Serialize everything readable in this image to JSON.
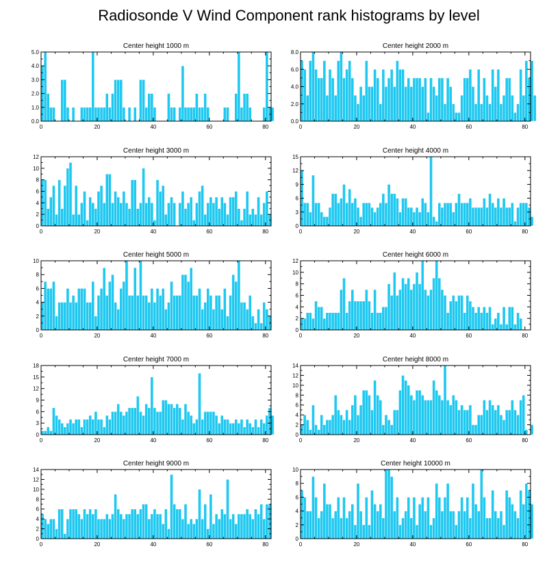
{
  "title": "Radiosonde V Wind Component rank histograms by level",
  "colors": {
    "bar": "#1ec8f0",
    "frame": "#000000",
    "background": "#ffffff"
  },
  "chart_data": [
    {
      "type": "bar",
      "title": "Center height 1000 m",
      "xlim": [
        0,
        82
      ],
      "ylim": [
        0,
        5
      ],
      "xticks": [
        0,
        20,
        40,
        60,
        80
      ],
      "yticks": [
        "0.0",
        "1.0",
        "2.0",
        "3.0",
        "4.0",
        "5.0"
      ],
      "values": [
        4,
        5,
        2,
        1,
        1,
        0,
        0,
        3,
        3,
        1,
        0,
        1,
        0,
        0,
        1,
        1,
        1,
        1,
        5,
        1,
        1,
        1,
        1,
        2,
        1,
        2,
        3,
        3,
        3,
        1,
        0,
        1,
        0,
        1,
        0,
        3,
        3,
        1,
        2,
        2,
        1,
        0,
        0,
        0,
        0,
        2,
        1,
        1,
        0,
        1,
        4,
        1,
        1,
        1,
        1,
        2,
        1,
        1,
        2,
        1,
        0,
        0,
        0,
        0,
        0,
        1,
        1,
        0,
        0,
        2,
        5,
        1,
        2,
        2,
        1,
        0,
        0,
        0,
        0,
        1,
        5,
        1,
        1
      ]
    },
    {
      "type": "bar",
      "title": "Center height 2000 m",
      "xlim": [
        0,
        82
      ],
      "ylim": [
        0,
        8
      ],
      "xticks": [
        0,
        20,
        40,
        60,
        80
      ],
      "yticks": [
        "0.0",
        "2.0",
        "4.0",
        "6.0",
        "8.0"
      ],
      "values": [
        7,
        6,
        3,
        7,
        8,
        6,
        5,
        5,
        7,
        3,
        6,
        5,
        3,
        7,
        8,
        5,
        6,
        7,
        5,
        3,
        2,
        4,
        3,
        7,
        4,
        4,
        6,
        5,
        2,
        6,
        4,
        5,
        6,
        4,
        7,
        6,
        6,
        4,
        5,
        4,
        5,
        5,
        5,
        4,
        5,
        1,
        5,
        4,
        3,
        5,
        5,
        2,
        5,
        4,
        2,
        1,
        1,
        3,
        5,
        5,
        6,
        4,
        2,
        6,
        2,
        5,
        3,
        2,
        6,
        4,
        6,
        2,
        3,
        5,
        5,
        3,
        1,
        2,
        6,
        3,
        7,
        5,
        7,
        3
      ]
    },
    {
      "type": "bar",
      "title": "Center height 3000 m",
      "xlim": [
        0,
        82
      ],
      "ylim": [
        0,
        12
      ],
      "xticks": [
        0,
        20,
        40,
        60,
        80
      ],
      "yticks": [
        "0",
        "2",
        "4",
        "6",
        "8",
        "10",
        "12"
      ],
      "values": [
        8,
        8,
        3,
        5,
        7,
        2,
        8,
        3,
        7,
        10,
        11,
        2,
        7,
        2,
        4,
        6,
        1,
        5,
        4,
        3,
        6,
        7,
        4,
        9,
        9,
        4,
        6,
        5,
        4,
        6,
        4,
        3,
        8,
        8,
        3,
        4,
        10,
        4,
        5,
        4,
        1,
        8,
        6,
        7,
        2,
        4,
        5,
        4,
        0,
        4,
        6,
        3,
        4,
        5,
        1,
        4,
        6,
        7,
        2,
        4,
        5,
        4,
        5,
        3,
        5,
        4,
        2,
        5,
        5,
        6,
        3,
        1,
        3,
        6,
        2,
        3,
        2,
        5,
        2,
        4,
        6,
        2
      ]
    },
    {
      "type": "bar",
      "title": "Center height 4000 m",
      "xlim": [
        0,
        82
      ],
      "ylim": [
        0,
        15
      ],
      "xticks": [
        0,
        20,
        40,
        60,
        80
      ],
      "yticks": [
        "0",
        "3",
        "6",
        "9",
        "12",
        "15"
      ],
      "values": [
        12,
        5,
        5,
        3,
        11,
        5,
        5,
        3,
        2,
        2,
        4,
        7,
        7,
        5,
        6,
        9,
        5,
        8,
        5,
        6,
        4,
        2,
        5,
        5,
        5,
        4,
        3,
        4,
        5,
        7,
        5,
        9,
        7,
        7,
        6,
        3,
        6,
        6,
        4,
        4,
        3,
        4,
        3,
        6,
        5,
        3,
        15,
        2,
        1,
        5,
        4,
        5,
        5,
        5,
        3,
        5,
        7,
        5,
        5,
        5,
        6,
        4,
        4,
        4,
        4,
        6,
        4,
        7,
        5,
        4,
        6,
        4,
        6,
        4,
        4,
        5,
        1,
        4,
        5,
        5,
        5,
        4,
        2
      ]
    },
    {
      "type": "bar",
      "title": "Center height 5000 m",
      "xlim": [
        0,
        82
      ],
      "ylim": [
        0,
        10
      ],
      "xticks": [
        0,
        20,
        40,
        60,
        80
      ],
      "yticks": [
        "0",
        "2",
        "4",
        "6",
        "8",
        "10"
      ],
      "values": [
        4,
        7,
        6,
        6,
        7,
        2,
        4,
        4,
        4,
        6,
        4,
        5,
        4,
        6,
        6,
        6,
        4,
        4,
        7,
        2,
        5,
        6,
        9,
        5,
        7,
        8,
        4,
        3,
        6,
        7,
        10,
        5,
        5,
        9,
        5,
        10,
        5,
        5,
        4,
        6,
        4,
        6,
        5,
        6,
        3,
        4,
        7,
        5,
        5,
        5,
        8,
        8,
        7,
        9,
        5,
        5,
        6,
        3,
        4,
        6,
        5,
        3,
        5,
        5,
        3,
        6,
        2,
        5,
        8,
        7,
        10,
        4,
        4,
        3,
        5,
        2,
        1,
        3,
        1,
        4,
        3,
        2
      ]
    },
    {
      "type": "bar",
      "title": "Center height 6000 m",
      "xlim": [
        0,
        82
      ],
      "ylim": [
        0,
        12
      ],
      "xticks": [
        0,
        20,
        40,
        60,
        80
      ],
      "yticks": [
        "0",
        "2",
        "4",
        "6",
        "8",
        "10",
        "12"
      ],
      "values": [
        2,
        2,
        3,
        3,
        2,
        5,
        4,
        4,
        2,
        3,
        3,
        3,
        3,
        3,
        7,
        9,
        3,
        5,
        7,
        5,
        5,
        5,
        5,
        7,
        5,
        3,
        7,
        3,
        3,
        4,
        4,
        8,
        6,
        10,
        6,
        7,
        9,
        8,
        9,
        7,
        8,
        10,
        8,
        12,
        7,
        6,
        7,
        9,
        12,
        9,
        7,
        6,
        3,
        5,
        6,
        5,
        6,
        6,
        3,
        6,
        5,
        4,
        3,
        4,
        3,
        4,
        3,
        4,
        1,
        2,
        3,
        1,
        4,
        1,
        4,
        4,
        1,
        3,
        2
      ]
    },
    {
      "type": "bar",
      "title": "Center height 7000 m",
      "xlim": [
        0,
        82
      ],
      "ylim": [
        0,
        18
      ],
      "xticks": [
        0,
        20,
        40,
        60,
        80
      ],
      "yticks": [
        "0",
        "3",
        "6",
        "9",
        "12",
        "15",
        "18"
      ],
      "values": [
        1,
        1,
        2,
        1,
        7,
        5,
        4,
        3,
        2,
        3,
        4,
        3,
        4,
        4,
        2,
        4,
        4,
        5,
        4,
        6,
        4,
        4,
        2,
        5,
        4,
        6,
        6,
        8,
        6,
        5,
        6,
        7,
        7,
        7,
        10,
        6,
        5,
        8,
        7,
        15,
        7,
        6,
        6,
        9,
        9,
        8,
        8,
        7,
        8,
        7,
        4,
        8,
        6,
        5,
        3,
        4,
        16,
        4,
        6,
        6,
        6,
        6,
        5,
        3,
        5,
        4,
        4,
        3,
        3,
        4,
        3,
        4,
        2,
        4,
        3,
        2,
        4,
        2,
        4,
        3,
        5,
        7,
        5
      ]
    },
    {
      "type": "bar",
      "title": "Center height 8000 m",
      "xlim": [
        0,
        82
      ],
      "ylim": [
        0,
        14
      ],
      "xticks": [
        0,
        20,
        40,
        60,
        80
      ],
      "yticks": [
        "0",
        "2",
        "4",
        "6",
        "8",
        "10",
        "12",
        "14"
      ],
      "values": [
        2,
        4,
        3,
        1,
        6,
        2,
        1,
        4,
        2,
        3,
        3,
        4,
        8,
        5,
        4,
        3,
        5,
        3,
        6,
        8,
        4,
        6,
        9,
        9,
        8,
        5,
        11,
        8,
        7,
        2,
        4,
        3,
        2,
        5,
        5,
        9,
        12,
        11,
        10,
        8,
        7,
        9,
        9,
        8,
        7,
        7,
        7,
        11,
        9,
        8,
        7,
        14,
        7,
        6,
        8,
        7,
        5,
        6,
        5,
        5,
        6,
        2,
        2,
        4,
        4,
        7,
        5,
        7,
        6,
        5,
        6,
        4,
        3,
        5,
        5,
        7,
        5,
        4,
        7,
        8,
        1,
        0,
        2
      ]
    },
    {
      "type": "bar",
      "title": "Center height 9000 m",
      "xlim": [
        0,
        82
      ],
      "ylim": [
        0,
        14
      ],
      "xticks": [
        0,
        20,
        40,
        60,
        80
      ],
      "yticks": [
        "0",
        "2",
        "4",
        "6",
        "8",
        "10",
        "12",
        "14"
      ],
      "values": [
        5,
        4,
        3,
        4,
        4,
        2,
        6,
        6,
        1,
        4,
        6,
        6,
        6,
        5,
        4,
        6,
        5,
        6,
        5,
        6,
        4,
        4,
        4,
        5,
        4,
        5,
        9,
        6,
        5,
        4,
        5,
        5,
        6,
        6,
        5,
        6,
        7,
        7,
        4,
        5,
        6,
        5,
        5,
        3,
        6,
        2,
        13,
        7,
        6,
        6,
        4,
        7,
        3,
        4,
        3,
        4,
        10,
        4,
        7,
        2,
        9,
        3,
        5,
        4,
        6,
        5,
        12,
        4,
        5,
        3,
        5,
        5,
        5,
        6,
        5,
        4,
        6,
        5,
        7,
        4,
        7,
        7
      ]
    },
    {
      "type": "bar",
      "title": "Center height 10000 m",
      "xlim": [
        0,
        82
      ],
      "ylim": [
        0,
        10
      ],
      "xticks": [
        0,
        20,
        40,
        60,
        80
      ],
      "yticks": [
        "0",
        "2",
        "4",
        "6",
        "8",
        "10"
      ],
      "values": [
        7,
        6,
        4,
        4,
        9,
        6,
        3,
        4,
        8,
        5,
        5,
        3,
        4,
        6,
        3,
        6,
        3,
        4,
        5,
        2,
        8,
        4,
        2,
        6,
        2,
        7,
        5,
        4,
        5,
        3,
        10,
        10,
        9,
        4,
        6,
        2,
        3,
        4,
        6,
        3,
        6,
        2,
        5,
        6,
        4,
        6,
        2,
        3,
        8,
        6,
        4,
        6,
        8,
        4,
        4,
        2,
        4,
        6,
        4,
        6,
        3,
        8,
        5,
        4,
        10,
        6,
        3,
        3,
        7,
        4,
        3,
        4,
        2,
        7,
        6,
        5,
        4,
        3,
        7,
        5,
        8,
        7,
        5
      ]
    }
  ]
}
